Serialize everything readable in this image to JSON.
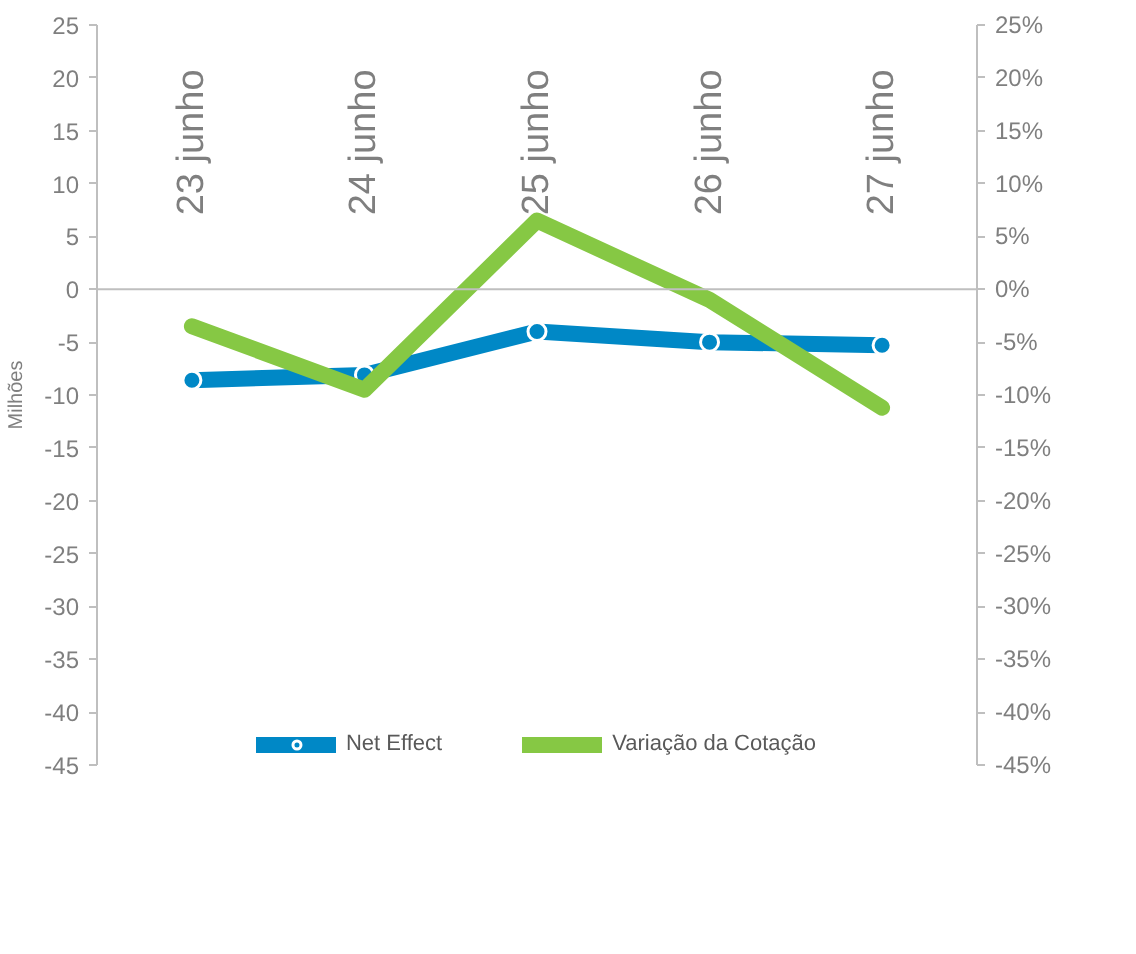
{
  "chart_data": {
    "type": "line",
    "categories": [
      "23 junho",
      "24 junho",
      "25 junho",
      "26 junho",
      "27 junho"
    ],
    "ylabel": "Milhões",
    "series": [
      {
        "name": "Net Effect",
        "color": "#0088c6",
        "values": [
          -8.6,
          -8.1,
          -4.0,
          -5.0,
          -5.3
        ],
        "marker": "circle"
      },
      {
        "name": "Variação da Cotação",
        "color": "#86c844",
        "values": [
          -3.5,
          -9.5,
          6.5,
          -1.0,
          -11.2
        ],
        "axis": "y2",
        "marker": "none"
      }
    ],
    "ylim": [
      -45,
      25
    ],
    "yticks": [
      -45,
      -40,
      -35,
      -30,
      -25,
      -20,
      -15,
      -10,
      -5,
      0,
      5,
      10,
      15,
      20,
      25
    ],
    "y2lim": [
      -45,
      25
    ],
    "y2ticks": [
      {
        "value": -45,
        "label": "-45%"
      },
      {
        "value": -40,
        "label": "-40%"
      },
      {
        "value": -35,
        "label": "-35%"
      },
      {
        "value": -30,
        "label": "-30%"
      },
      {
        "value": -25,
        "label": "-25%"
      },
      {
        "value": -20,
        "label": "-20%"
      },
      {
        "value": -15,
        "label": "-15%"
      },
      {
        "value": -10,
        "label": "-10%"
      },
      {
        "value": -5,
        "label": "-5%"
      },
      {
        "value": 0,
        "label": "0%"
      },
      {
        "value": 5,
        "label": "5%"
      },
      {
        "value": 10,
        "label": "10%"
      },
      {
        "value": 15,
        "label": "15%"
      },
      {
        "value": 20,
        "label": "20%"
      },
      {
        "value": 25,
        "label": "25%"
      }
    ],
    "grid": false,
    "legend": "bottom",
    "line_style": "solid"
  }
}
